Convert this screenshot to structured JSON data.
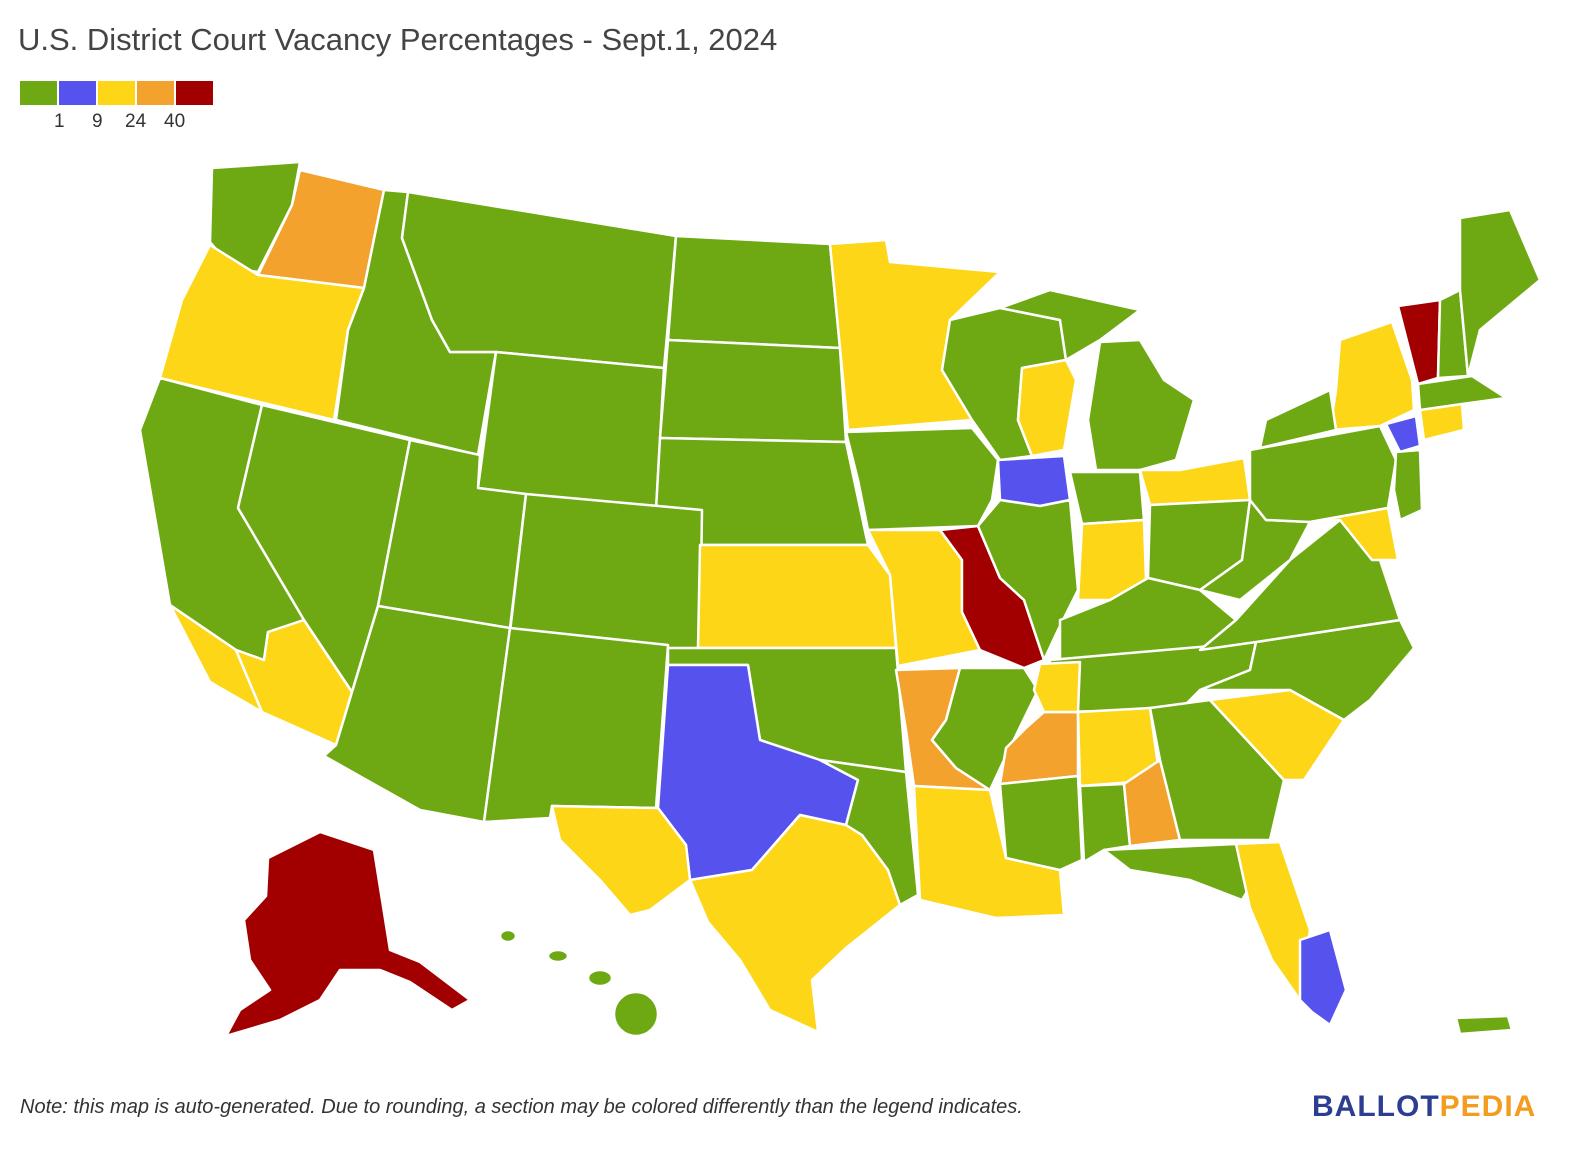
{
  "title": "U.S. District Court Vacancy Percentages - Sept.1, 2024",
  "legend": {
    "colors": [
      "#6ea914",
      "#5652ee",
      "#fcd617",
      "#f3a22d",
      "#a20000"
    ],
    "labels": [
      "1",
      "9",
      "24",
      "40"
    ]
  },
  "note": "Note: this map is auto-generated. Due to rounding, a section may be colored differently than the legend indicates.",
  "logo": {
    "part1": "BALLOT",
    "part2": "PEDIA",
    "color1": "#2c3e92",
    "color2": "#f39c1f"
  },
  "map": {
    "category_colors": {
      "green": "#6ea914",
      "blue": "#5652ee",
      "yellow": "#fcd617",
      "orange": "#f3a22d",
      "red": "#a20000"
    }
  }
}
